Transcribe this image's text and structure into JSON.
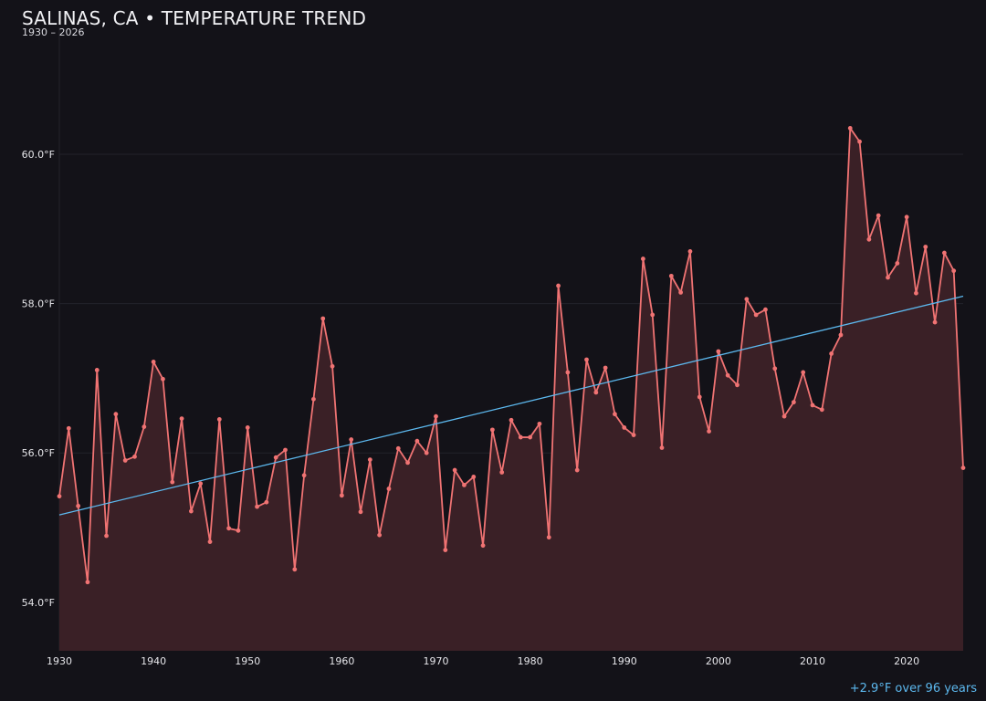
{
  "title": "SALINAS, CA • TEMPERATURE TREND",
  "subtitle": "1930 – 2026",
  "footnote": "+2.9°F over 96 years",
  "colors": {
    "background": "#131218",
    "series": "#f07373",
    "area": "#3a2026",
    "trend": "#5cb8ee",
    "grid": "#23222a"
  },
  "chart_data": {
    "type": "line",
    "title": "SALINAS, CA • TEMPERATURE TREND",
    "subtitle": "1930 – 2026",
    "xlim": [
      1930,
      2026
    ],
    "ylim": [
      53.35,
      61.7
    ],
    "x_ticks": [
      1930,
      1940,
      1950,
      1960,
      1970,
      1980,
      1990,
      2000,
      2010,
      2020
    ],
    "y_ticks": [
      54,
      56,
      58,
      60
    ],
    "y_tick_labels": [
      "54.0°F",
      "56.0°F",
      "58.0°F",
      "60.0°F"
    ],
    "grid": true,
    "series": [
      {
        "x": [
          1930,
          1931,
          1932,
          1933,
          1934,
          1935,
          1936,
          1937,
          1938,
          1939,
          1940,
          1941,
          1942,
          1943,
          1944,
          1945,
          1946,
          1947,
          1948,
          1949,
          1950,
          1951,
          1952,
          1953,
          1954,
          1955,
          1956,
          1957,
          1958,
          1959,
          1960,
          1961,
          1962,
          1963,
          1964,
          1965,
          1966,
          1967,
          1968,
          1969,
          1970,
          1971,
          1972,
          1973,
          1974,
          1975,
          1976,
          1977,
          1978,
          1979,
          1980,
          1981,
          1982,
          1983,
          1984,
          1985,
          1986,
          1987,
          1988,
          1989,
          1990,
          1991,
          1992,
          1993,
          1994,
          1995,
          1996,
          1997,
          1998,
          1999,
          2000,
          2001,
          2002,
          2003,
          2004,
          2005,
          2006,
          2007,
          2008,
          2009,
          2010,
          2011,
          2012,
          2013,
          2014,
          2015,
          2016,
          2017,
          2018,
          2019,
          2020,
          2021,
          2022,
          2023,
          2024,
          2025,
          2026
        ],
        "values": [
          55.42,
          56.33,
          55.29,
          54.27,
          57.11,
          54.89,
          56.52,
          55.9,
          55.95,
          56.35,
          57.22,
          56.99,
          55.61,
          56.46,
          55.22,
          55.59,
          54.81,
          56.45,
          54.99,
          54.96,
          56.34,
          55.28,
          55.34,
          55.94,
          56.04,
          54.44,
          55.7,
          56.72,
          57.8,
          57.16,
          55.43,
          56.18,
          55.21,
          55.91,
          54.9,
          55.52,
          56.06,
          55.87,
          56.16,
          56.0,
          56.49,
          54.7,
          55.77,
          55.57,
          55.68,
          54.76,
          56.31,
          55.74,
          56.44,
          56.21,
          56.21,
          56.39,
          54.87,
          58.24,
          57.08,
          55.77,
          57.25,
          56.81,
          57.14,
          56.52,
          56.34,
          56.24,
          58.6,
          57.85,
          56.07,
          58.37,
          58.15,
          58.7,
          56.75,
          56.29,
          57.36,
          57.04,
          56.91,
          58.06,
          57.85,
          57.92,
          57.13,
          56.49,
          56.68,
          57.08,
          56.64,
          56.58,
          57.33,
          57.58,
          60.35,
          60.17,
          58.86,
          59.18,
          58.35,
          58.54,
          59.16,
          58.14,
          58.76,
          57.75,
          58.68,
          58.44,
          55.8
        ]
      }
    ],
    "trend": {
      "x": [
        1930,
        2026
      ],
      "values": [
        55.17,
        58.1
      ]
    }
  }
}
